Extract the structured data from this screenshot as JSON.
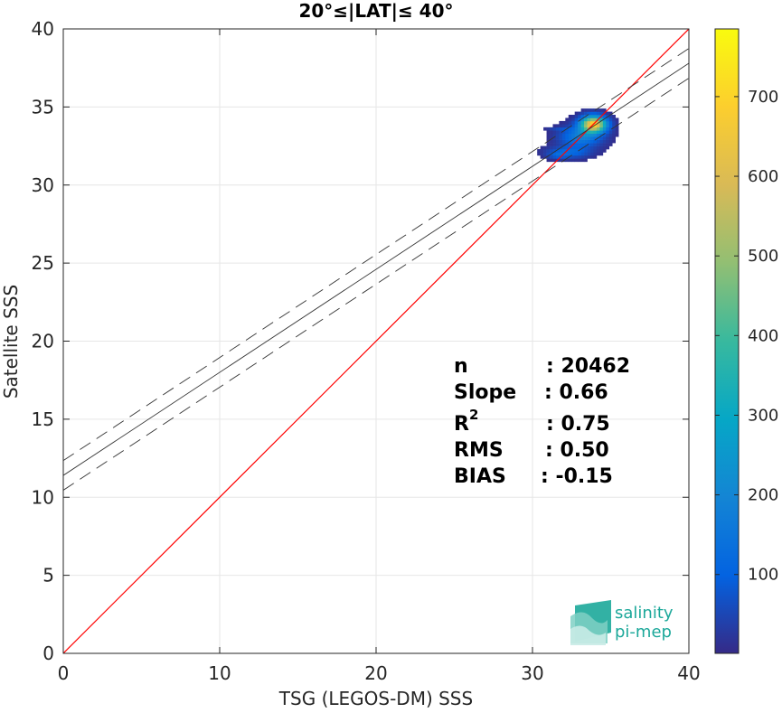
{
  "chart_data": {
    "type": "heatmap",
    "title": "20°≤|LAT|≤ 40°",
    "xlabel": "TSG (LEGOS-DM) SSS",
    "ylabel": "Satellite SSS",
    "xlim": [
      0,
      40
    ],
    "ylim": [
      0,
      40
    ],
    "xticks": [
      "0",
      "10",
      "20",
      "30",
      "40"
    ],
    "yticks": [
      "0",
      "5",
      "10",
      "15",
      "20",
      "25",
      "30",
      "35",
      "40"
    ],
    "grid": true,
    "identity_line": {
      "color": "#ff0000",
      "from": [
        0,
        0
      ],
      "to": [
        40,
        40
      ]
    },
    "regression": {
      "slope": 0.66,
      "intercept": 11.4,
      "band_offset": 0.95,
      "color": "#333333"
    },
    "density_clusters": [
      {
        "x": 33.8,
        "y": 33.8,
        "sx": 0.55,
        "sy": 0.35,
        "peak": 700
      },
      {
        "x": 33.0,
        "y": 33.0,
        "sx": 0.9,
        "sy": 0.45,
        "peak": 180
      },
      {
        "x": 32.2,
        "y": 32.0,
        "sx": 0.9,
        "sy": 0.25,
        "peak": 120
      },
      {
        "x": 31.5,
        "y": 31.8,
        "sx": 0.4,
        "sy": 0.15,
        "peak": 60
      },
      {
        "x": 31.6,
        "y": 33.5,
        "sx": 0.5,
        "sy": 0.08,
        "peak": 40
      }
    ],
    "colorbar": {
      "min": 1,
      "max": 785,
      "ticks": [
        "100",
        "200",
        "300",
        "400",
        "500",
        "600",
        "700"
      ],
      "colormap": "parula"
    },
    "stats": [
      {
        "label": "n",
        "sep": ": 20462"
      },
      {
        "label": "Slope",
        "sep": ": 0.66"
      },
      {
        "label": "R",
        "sup": "2",
        "sep": ": 0.75"
      },
      {
        "label": "RMS",
        "sep": ": 0.50"
      },
      {
        "label": "BIAS",
        "sep": ": -0.15"
      }
    ]
  },
  "logo": {
    "line1": "salinity",
    "line2": "pi-mep"
  }
}
